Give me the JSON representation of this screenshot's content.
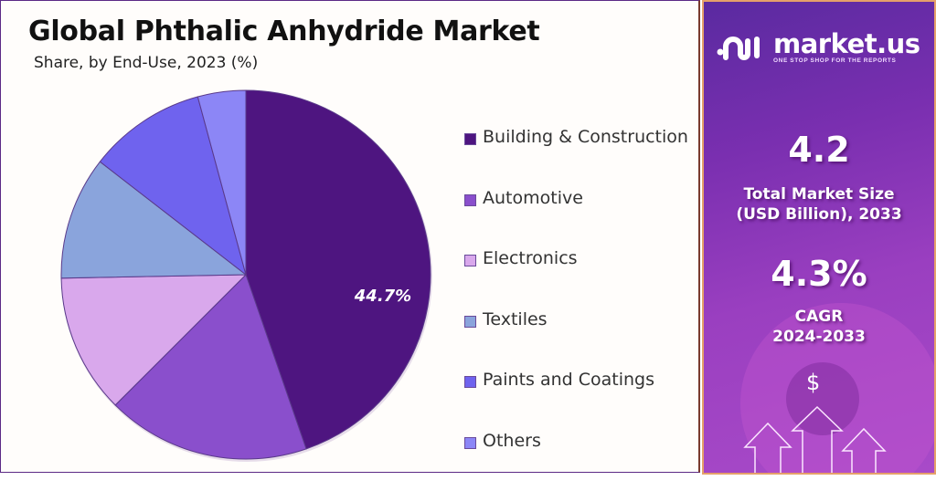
{
  "header": {
    "title": "Global Phthalic Anhydride Market",
    "subtitle": "Share, by End-Use, 2023 (%)"
  },
  "chart_data": {
    "type": "pie",
    "title": "Global Phthalic Anhydride Market",
    "subtitle": "Share, by End-Use, 2023 (%)",
    "categories": [
      "Building & Construction",
      "Automotive",
      "Electronics",
      "Textiles",
      "Paints and Coatings",
      "Others"
    ],
    "values": [
      44.7,
      17.8,
      12.2,
      10.8,
      10.3,
      4.2
    ],
    "colors": [
      "#4e1580",
      "#8a4fcc",
      "#d9a8ec",
      "#8aa4dc",
      "#6f63ee",
      "#8c86f6"
    ],
    "data_labels": [
      {
        "category": "Building & Construction",
        "text": "44.7%"
      }
    ],
    "legend_position": "right",
    "start_angle_deg": 0,
    "direction": "clockwise"
  },
  "legend": {
    "items": [
      {
        "label": "Building & Construction",
        "color": "#4e1580"
      },
      {
        "label": "Automotive",
        "color": "#8a4fcc"
      },
      {
        "label": "Electronics",
        "color": "#d9a8ec"
      },
      {
        "label": "Textiles",
        "color": "#8aa4dc"
      },
      {
        "label": "Paints and Coatings",
        "color": "#6f63ee"
      },
      {
        "label": "Others",
        "color": "#8c86f6"
      }
    ]
  },
  "sidebar": {
    "brand": "market.us",
    "tagline": "ONE STOP SHOP FOR THE REPORTS",
    "market_size_value": "4.2",
    "market_size_label_1": "Total Market Size",
    "market_size_label_2": "(USD Billion), 2033",
    "cagr_value": "4.3%",
    "cagr_label_1": "CAGR",
    "cagr_label_2": "2024-2033",
    "dollar_symbol": "$"
  }
}
